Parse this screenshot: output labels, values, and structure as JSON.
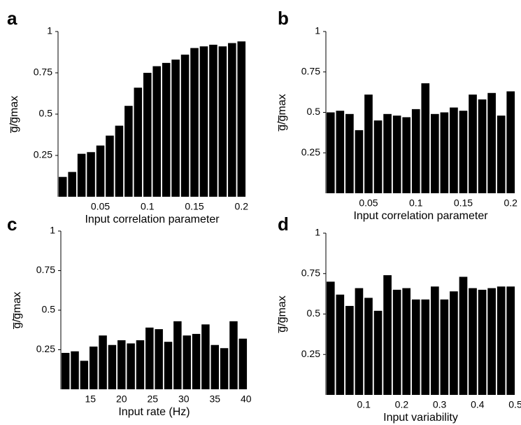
{
  "chart_data": [
    {
      "type": "bar",
      "label": "a",
      "xlabel": "Input correlation parameter",
      "ylabel": "g̅/g̅max",
      "color": "#000000",
      "x": [
        0.01,
        0.02,
        0.03,
        0.04,
        0.05,
        0.06,
        0.07,
        0.08,
        0.09,
        0.1,
        0.11,
        0.12,
        0.13,
        0.14,
        0.15,
        0.16,
        0.17,
        0.18,
        0.19,
        0.2
      ],
      "values": [
        0.12,
        0.15,
        0.26,
        0.27,
        0.31,
        0.37,
        0.43,
        0.55,
        0.66,
        0.75,
        0.79,
        0.81,
        0.83,
        0.86,
        0.9,
        0.91,
        0.92,
        0.91,
        0.93,
        0.94
      ],
      "xlim": [
        0.005,
        0.205
      ],
      "xticks": [
        0.05,
        0.1,
        0.15,
        0.2
      ],
      "ylim": [
        0,
        1
      ],
      "yticks": [
        0.25,
        0.5,
        0.75,
        1
      ]
    },
    {
      "type": "bar",
      "label": "b",
      "xlabel": "Input correlation parameter",
      "ylabel": "g̅/g̅max",
      "color": "#000000",
      "x": [
        0.01,
        0.02,
        0.03,
        0.04,
        0.05,
        0.06,
        0.07,
        0.08,
        0.09,
        0.1,
        0.11,
        0.12,
        0.13,
        0.14,
        0.15,
        0.16,
        0.17,
        0.18,
        0.19,
        0.2
      ],
      "values": [
        0.5,
        0.51,
        0.49,
        0.39,
        0.61,
        0.45,
        0.49,
        0.48,
        0.47,
        0.52,
        0.68,
        0.49,
        0.5,
        0.53,
        0.51,
        0.61,
        0.58,
        0.62,
        0.48,
        0.63
      ],
      "xlim": [
        0.005,
        0.205
      ],
      "xticks": [
        0.05,
        0.1,
        0.15,
        0.2
      ],
      "ylim": [
        0,
        1
      ],
      "yticks": [
        0.25,
        0.5,
        0.75,
        1
      ]
    },
    {
      "type": "bar",
      "label": "c",
      "xlabel": "Input rate (Hz)",
      "ylabel": "g̅/g̅max",
      "color": "#000000",
      "x": [
        11,
        12.5,
        14,
        15.5,
        17,
        18.5,
        20,
        21.5,
        23,
        24.5,
        26,
        27.5,
        29,
        30.5,
        32,
        33.5,
        35,
        36.5,
        38,
        39.5
      ],
      "values": [
        0.23,
        0.24,
        0.18,
        0.27,
        0.34,
        0.28,
        0.31,
        0.29,
        0.31,
        0.39,
        0.38,
        0.3,
        0.43,
        0.34,
        0.35,
        0.41,
        0.28,
        0.26,
        0.43,
        0.32
      ],
      "xlim": [
        10.25,
        40.25
      ],
      "xticks": [
        15,
        20,
        25,
        30,
        35,
        40
      ],
      "ylim": [
        0,
        1
      ],
      "yticks": [
        0.25,
        0.5,
        0.75,
        1
      ]
    },
    {
      "type": "bar",
      "label": "d",
      "xlabel": "Input variability",
      "ylabel": "g̅/g̅max",
      "color": "#000000",
      "x": [
        0.0125,
        0.0375,
        0.0625,
        0.0875,
        0.1125,
        0.1375,
        0.1625,
        0.1875,
        0.2125,
        0.2375,
        0.2625,
        0.2875,
        0.3125,
        0.3375,
        0.3625,
        0.3875,
        0.4125,
        0.4375,
        0.4625,
        0.4875
      ],
      "values": [
        0.7,
        0.62,
        0.55,
        0.66,
        0.6,
        0.52,
        0.74,
        0.65,
        0.66,
        0.59,
        0.59,
        0.67,
        0.59,
        0.64,
        0.73,
        0.66,
        0.65,
        0.66,
        0.67,
        0.67
      ],
      "xlim": [
        0,
        0.5
      ],
      "xticks": [
        0.1,
        0.2,
        0.3,
        0.4,
        0.5
      ],
      "ylim": [
        0,
        1
      ],
      "yticks": [
        0.25,
        0.5,
        0.75,
        1
      ]
    }
  ]
}
